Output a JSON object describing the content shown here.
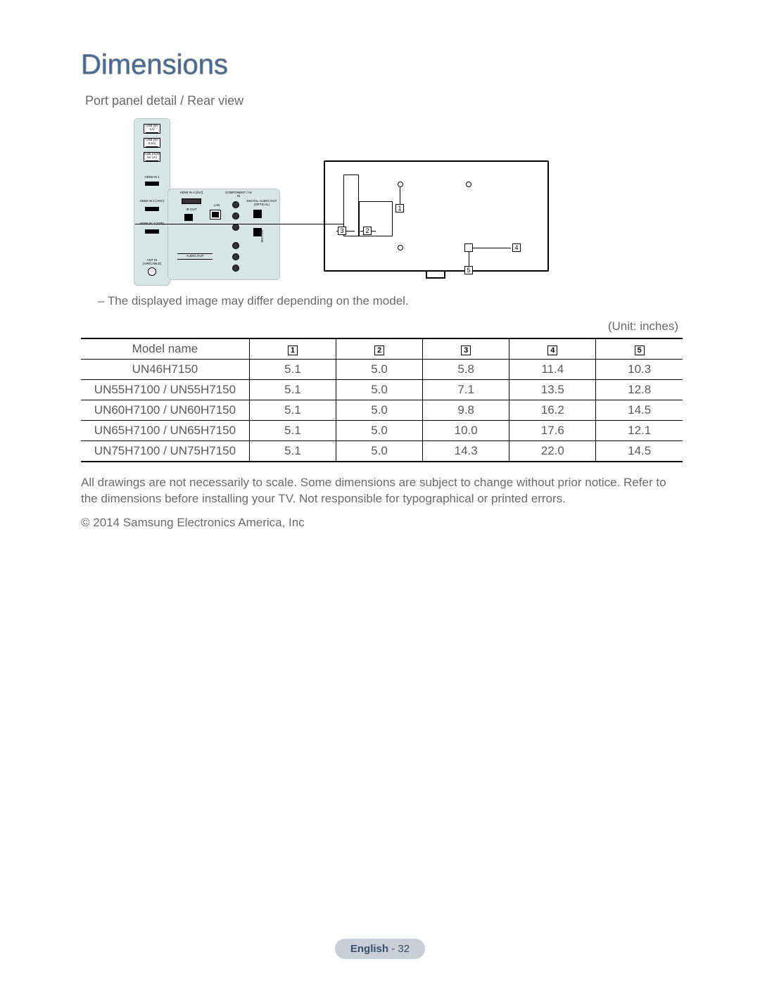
{
  "title": "Dimensions",
  "subtitle": "Port panel detail / Rear view",
  "note": "The displayed image may differ depending on the model.",
  "unit_label": "(Unit: inches)",
  "diagram": {
    "port_panel_bg": "#d7e5e5",
    "port_panel_border": "#b8c8c8",
    "line_color": "#000000",
    "ports_column": [
      {
        "label": "USB (5V 1A)"
      },
      {
        "label": "USB (5V 0.5A)"
      },
      {
        "label": "USB (HDD 5V 1A)"
      },
      {
        "label": "HDMI IN 1"
      },
      {
        "label": "HDMI IN 2 (ARC)"
      },
      {
        "label": "HDMI IN 3 (STB)"
      },
      {
        "label": "ANT IN (AIR/CABLE)"
      }
    ],
    "ports_row": [
      {
        "label": "HDMI IN 4 (DVI)"
      },
      {
        "label": "IR OUT"
      },
      {
        "label": "LAN"
      },
      {
        "label": "COMPONENT / AV IN"
      },
      {
        "label": "DIGITAL AUDIO OUT (OPTICAL)"
      },
      {
        "label": "AUDIO OUT"
      },
      {
        "label": "EX-LINK"
      }
    ],
    "markers": [
      "1",
      "2",
      "3",
      "4",
      "5"
    ]
  },
  "table": {
    "header_model": "Model name",
    "columns": [
      "1",
      "2",
      "3",
      "4",
      "5"
    ],
    "rows": [
      {
        "model": "UN46H7150",
        "vals": [
          "5.1",
          "5.0",
          "5.8",
          "11.4",
          "10.3"
        ]
      },
      {
        "model": "UN55H7100 / UN55H7150",
        "vals": [
          "5.1",
          "5.0",
          "7.1",
          "13.5",
          "12.8"
        ]
      },
      {
        "model": "UN60H7100 / UN60H7150",
        "vals": [
          "5.1",
          "5.0",
          "9.8",
          "16.2",
          "14.5"
        ]
      },
      {
        "model": "UN65H7100 / UN65H7150",
        "vals": [
          "5.1",
          "5.0",
          "10.0",
          "17.6",
          "12.1"
        ]
      },
      {
        "model": "UN75H7100 / UN75H7150",
        "vals": [
          "5.1",
          "5.0",
          "14.3",
          "22.0",
          "14.5"
        ]
      }
    ],
    "col_widths": [
      "28%",
      "14.4%",
      "14.4%",
      "14.4%",
      "14.4%",
      "14.4%"
    ]
  },
  "disclaimer": "All drawings are not necessarily to scale. Some dimensions are subject to change without prior notice. Refer to the dimensions before installing your TV. Not responsible for typographical or printed errors.",
  "copyright": "© 2014 Samsung Electronics America, Inc",
  "footer": {
    "lang": "English",
    "sep": " - ",
    "page": "32"
  },
  "colors": {
    "title_color": "#3a6a9e",
    "text_color": "#5a5a5a",
    "footer_bg": "#c9cfd6",
    "footer_text": "#37506f"
  },
  "typography": {
    "title_fontsize": 40,
    "body_fontsize": 17,
    "footer_fontsize": 15
  }
}
